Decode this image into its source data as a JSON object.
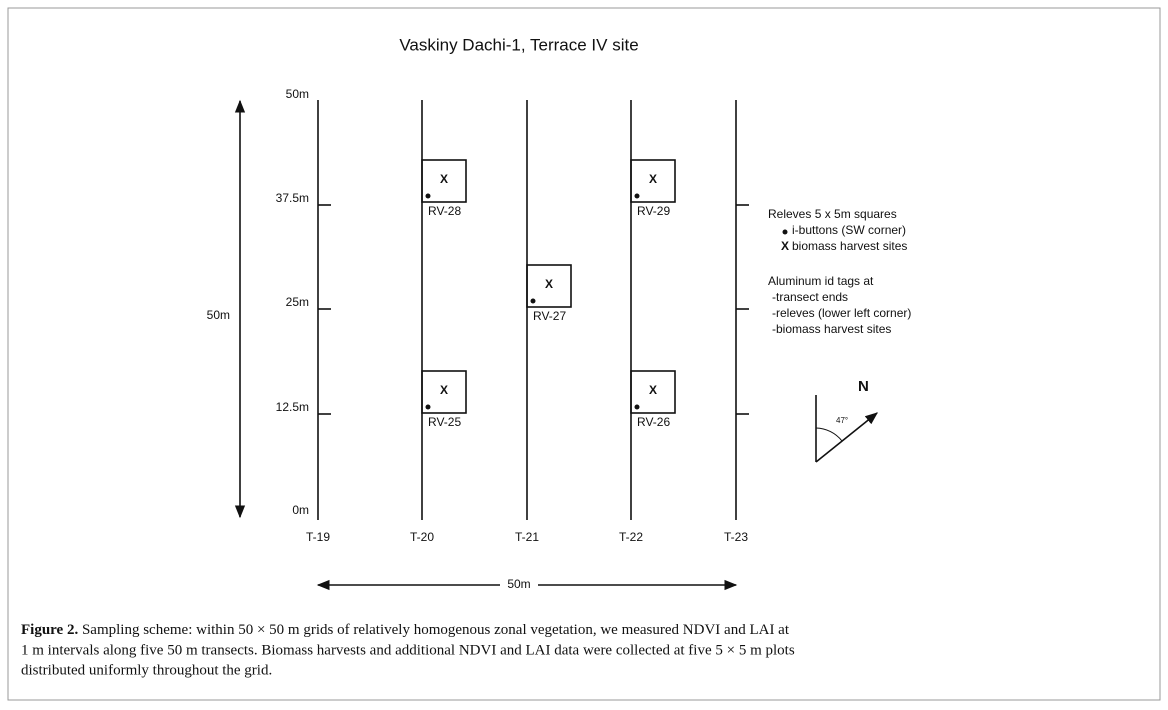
{
  "figure": {
    "title": "Vaskiny Dachi-1, Terrace IV site",
    "y_labels": [
      "50m",
      "37.5m",
      "25m",
      "12.5m",
      "0m"
    ],
    "transects": [
      "T-19",
      "T-20",
      "T-21",
      "T-22",
      "T-23"
    ],
    "height_label": "50m",
    "width_label": "50m",
    "plots": [
      {
        "mark": "X",
        "label": "RV-28"
      },
      {
        "mark": "X",
        "label": "RV-29"
      },
      {
        "mark": "X",
        "label": "RV-27"
      },
      {
        "mark": "X",
        "label": "RV-25"
      },
      {
        "mark": "X",
        "label": "RV-26"
      }
    ],
    "legend": {
      "heading": "Releves 5 x 5m squares",
      "dot_item": "i-buttons (SW corner)",
      "x_mark": "X",
      "x_item": "biomass harvest sites",
      "tags_heading": "Aluminum id tags at",
      "tags": [
        "-transect ends",
        "-releves (lower left corner)",
        "-biomass harvest sites"
      ]
    },
    "north": {
      "letter": "N",
      "angle": "47°"
    }
  },
  "caption": {
    "label": "Figure 2.",
    "lines": [
      " Sampling scheme: within 50 × 50 m grids of relatively homogenous zonal vegetation, we measured NDVI and LAI at",
      "1 m intervals along five 50 m transects. Biomass harvests and additional NDVI and LAI data were collected at five 5 × 5 m plots",
      "distributed uniformly throughout the grid."
    ]
  }
}
